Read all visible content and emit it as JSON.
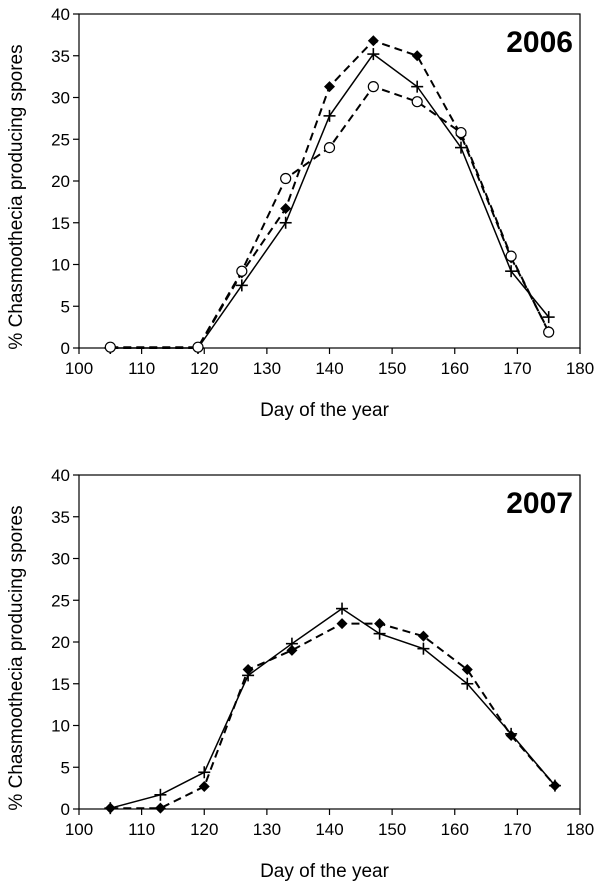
{
  "chart_data": [
    {
      "type": "line",
      "title": "2006",
      "xlabel": "Day of the year",
      "ylabel": "% Chasmoothecia producing spores",
      "xlim": [
        100,
        180
      ],
      "ylim": [
        0,
        40
      ],
      "xticks": [
        "100",
        "110",
        "120",
        "130",
        "140",
        "150",
        "160",
        "170",
        "180"
      ],
      "yticks": [
        "0",
        "5",
        "10",
        "15",
        "20",
        "25",
        "30",
        "35",
        "40"
      ],
      "grid": false,
      "series": [
        {
          "marker": "plus",
          "line": "solid",
          "points": [
            [
              105,
              0
            ],
            [
              119,
              0
            ],
            [
              126,
              7.5
            ],
            [
              133,
              15
            ],
            [
              140,
              27.8
            ],
            [
              147,
              35.2
            ],
            [
              154,
              31.3
            ],
            [
              161,
              24
            ],
            [
              169,
              9.2
            ],
            [
              175,
              3.7
            ]
          ]
        },
        {
          "marker": "diamond",
          "line": "dashed",
          "points": [
            [
              105,
              0
            ],
            [
              119,
              0
            ],
            [
              126,
              9
            ],
            [
              133,
              16.7
            ],
            [
              140,
              31.3
            ],
            [
              147,
              36.8
            ],
            [
              154,
              35
            ],
            [
              161,
              25.5
            ],
            [
              169,
              10.8
            ],
            [
              175,
              2
            ]
          ]
        },
        {
          "marker": "circle",
          "line": "dashed",
          "points": [
            [
              105,
              0.1
            ],
            [
              119,
              0.1
            ],
            [
              126,
              9.2
            ],
            [
              133,
              20.3
            ],
            [
              140,
              24
            ],
            [
              147,
              31.3
            ],
            [
              154,
              29.5
            ],
            [
              161,
              25.8
            ],
            [
              169,
              11
            ],
            [
              175,
              1.9
            ]
          ]
        }
      ]
    },
    {
      "type": "line",
      "title": "2007",
      "xlabel": "Day of the year",
      "ylabel": "% Chasmoothecia producing spores",
      "xlim": [
        100,
        180
      ],
      "ylim": [
        0,
        40
      ],
      "xticks": [
        "100",
        "110",
        "120",
        "130",
        "140",
        "150",
        "160",
        "170",
        "180"
      ],
      "yticks": [
        "0",
        "5",
        "10",
        "15",
        "20",
        "25",
        "30",
        "35",
        "40"
      ],
      "grid": false,
      "series": [
        {
          "marker": "plus",
          "line": "solid",
          "points": [
            [
              105,
              0.1
            ],
            [
              113,
              1.7
            ],
            [
              120,
              4.4
            ],
            [
              127,
              16
            ],
            [
              134,
              19.8
            ],
            [
              142,
              24
            ],
            [
              148,
              21
            ],
            [
              155,
              19.2
            ],
            [
              162,
              15
            ],
            [
              169,
              9
            ],
            [
              176,
              2.8
            ]
          ]
        },
        {
          "marker": "diamond",
          "line": "dashed",
          "points": [
            [
              105,
              0.1
            ],
            [
              113,
              0.1
            ],
            [
              120,
              2.7
            ],
            [
              127,
              16.7
            ],
            [
              134,
              19
            ],
            [
              142,
              22.2
            ],
            [
              148,
              22.2
            ],
            [
              155,
              20.7
            ],
            [
              162,
              16.7
            ],
            [
              169,
              8.8
            ],
            [
              176,
              2.8
            ]
          ]
        }
      ]
    }
  ]
}
